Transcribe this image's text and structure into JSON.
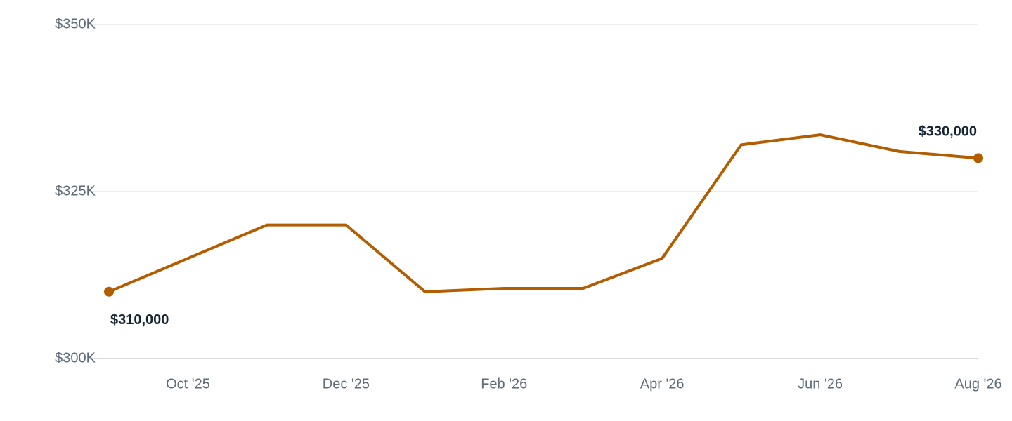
{
  "chart_data": {
    "type": "line",
    "categories": [
      null,
      "Oct '25",
      null,
      "Dec '25",
      null,
      "Feb '26",
      null,
      "Apr '26",
      null,
      "Jun '26",
      null,
      "Aug '26"
    ],
    "values": [
      310000,
      315000,
      320000,
      320000,
      310000,
      310500,
      310500,
      315000,
      332000,
      333500,
      331000,
      330000
    ],
    "value_labels": [
      "$310,000",
      null,
      null,
      null,
      null,
      null,
      null,
      null,
      null,
      null,
      null,
      "$330,000"
    ],
    "color": "#b35c00",
    "ylim": [
      300000,
      350000
    ],
    "yticks": [
      {
        "value": 300000,
        "label": "$300K"
      },
      {
        "value": 325000,
        "label": "$325K"
      },
      {
        "value": 350000,
        "label": "$350K"
      }
    ],
    "grid": true
  }
}
